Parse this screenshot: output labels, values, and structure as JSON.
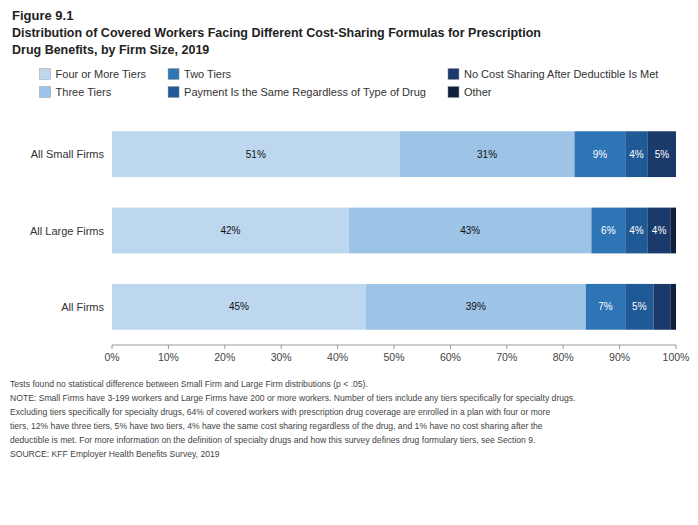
{
  "chart_data": {
    "type": "bar",
    "orientation": "horizontal",
    "stacked": true,
    "data_labels": true,
    "grid": false,
    "legend": "top",
    "title": "Figure 9.1",
    "subtitle": [
      "Distribution of Covered Workers Facing Different Cost-Sharing Formulas for Prescription",
      "Drug Benefits, by Firm Size, 2019"
    ],
    "categories": [
      "All Small Firms",
      "All Large Firms",
      "All Firms"
    ],
    "series": [
      {
        "name": "Four or More Tiers",
        "color": "#bdd7ee",
        "values": [
          51,
          42,
          45
        ],
        "value_labels": [
          "51%",
          "42%",
          "45%"
        ]
      },
      {
        "name": "Three Tiers",
        "color": "#9dc3e6",
        "values": [
          31,
          43,
          39
        ],
        "value_labels": [
          "31%",
          "43%",
          "39%"
        ]
      },
      {
        "name": "Two Tiers",
        "color": "#2e75b6",
        "values": [
          9,
          6,
          7
        ],
        "value_labels": [
          "9%",
          "6%",
          "7%"
        ]
      },
      {
        "name": "Payment Is the Same Regardless of Type of Drug",
        "color": "#1f5a96",
        "values": [
          4,
          4,
          5
        ],
        "value_labels": [
          "4%",
          "4%",
          "5%"
        ]
      },
      {
        "name": "No Cost Sharing After Deductible Is Met",
        "color": "#1a3a6c",
        "values": [
          5,
          4,
          3
        ],
        "value_labels": [
          "5%",
          "4%",
          null
        ]
      },
      {
        "name": "Other",
        "color": "#0d1f3c",
        "values": [
          0,
          1,
          1
        ],
        "value_labels": [
          null,
          null,
          null
        ]
      }
    ],
    "xlim": [
      0,
      100
    ],
    "xticks": [
      {
        "value": 0,
        "label": "0%"
      },
      {
        "value": 10,
        "label": "10%"
      },
      {
        "value": 20,
        "label": "20%"
      },
      {
        "value": 30,
        "label": "30%"
      },
      {
        "value": 40,
        "label": "40%"
      },
      {
        "value": 50,
        "label": "50%"
      },
      {
        "value": 60,
        "label": "60%"
      },
      {
        "value": 70,
        "label": "70%"
      },
      {
        "value": 80,
        "label": "80%"
      },
      {
        "value": 90,
        "label": "90%"
      },
      {
        "value": 100,
        "label": "100%"
      }
    ],
    "annotations": [
      "Tests found no statistical difference between Small Firm and Large Firm distributions (p < .05).",
      "NOTE: Small Firms have 3-199 workers and Large Firms have 200 or more workers. Number of tiers include any tiers specifically for specialty drugs.",
      "Excluding tiers specifically for specialty drugs, 64% of covered workers with prescription drug coverage are enrolled in a plan with four or more",
      "tiers, 12% have three tiers, 5% have two tiers, 4% have the same cost sharing regardless of the drug, and 1% have no cost sharing after the",
      "deductible is met. For more information on the definition of specialty drugs and how this survey defines drug formulary tiers, see Section 9.",
      "SOURCE: KFF Employer Health Benefits Survey, 2019"
    ]
  }
}
